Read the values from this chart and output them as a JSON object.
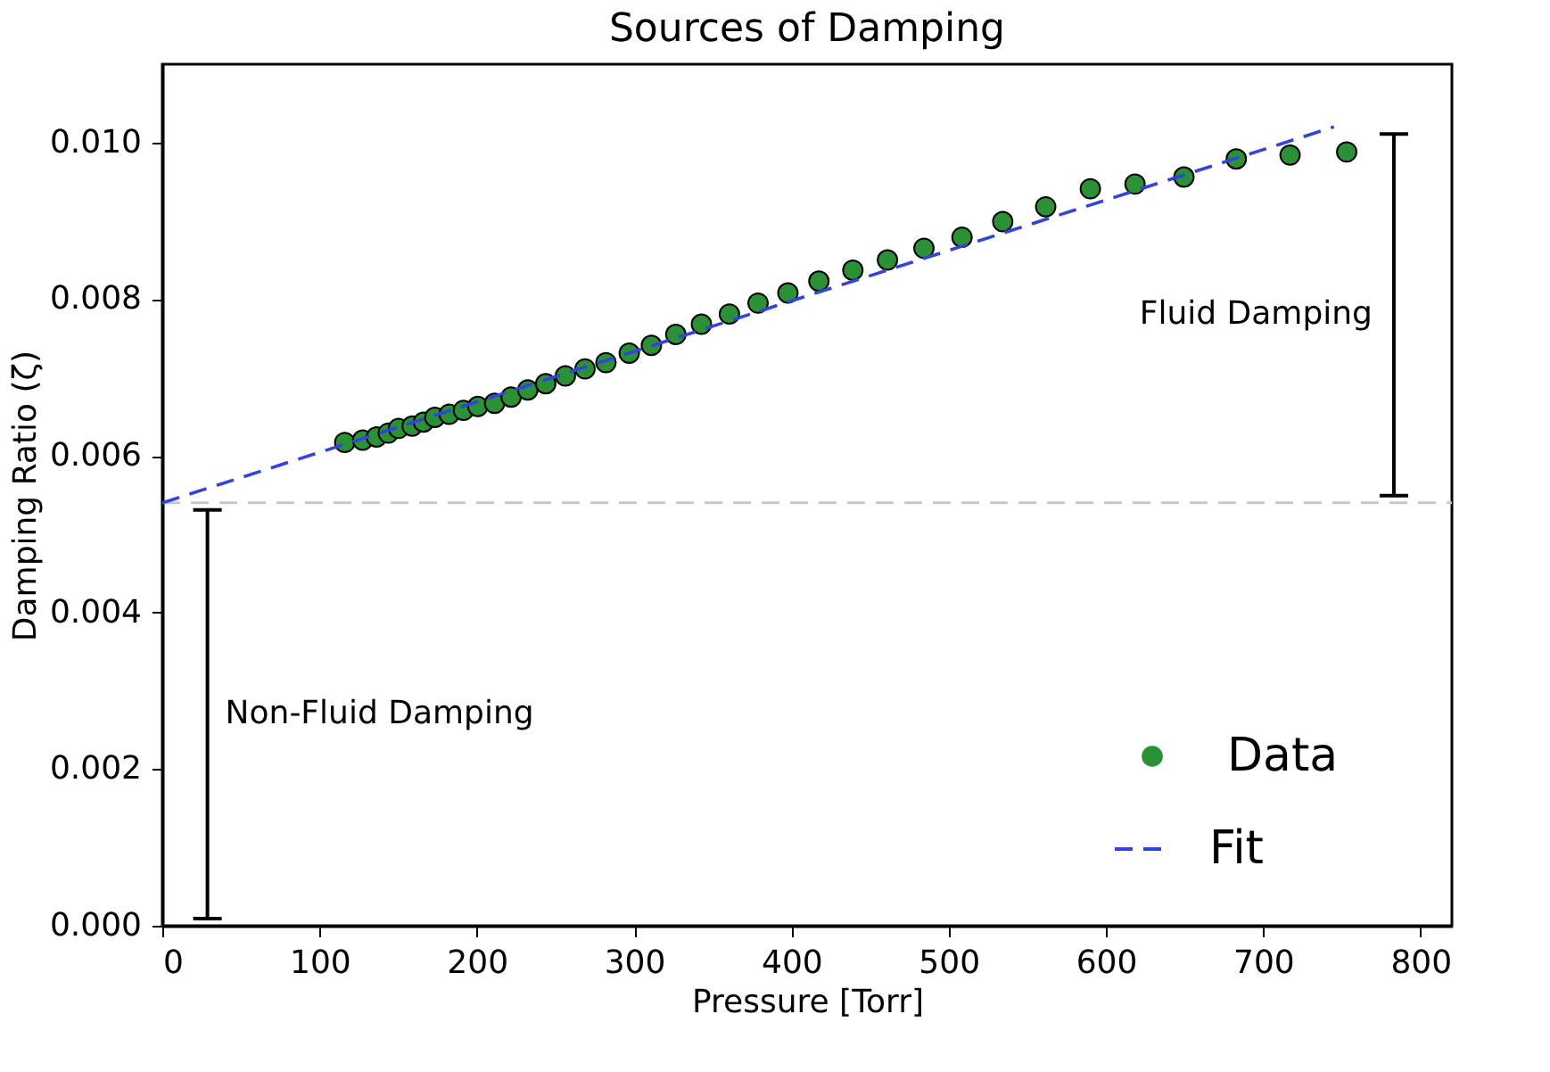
{
  "chart_data": {
    "type": "scatter",
    "title": "Sources of Damping",
    "xlabel": "Pressure [Torr]",
    "ylabel": "Damping Ratio (ζ)",
    "xlim": [
      0,
      820
    ],
    "xticks": [
      0,
      100,
      200,
      300,
      400,
      500,
      600,
      700,
      800
    ],
    "ylim": [
      0,
      0.011
    ],
    "yticks": [
      {
        "value": 0,
        "label": "0.000"
      },
      {
        "value": 0.002,
        "label": "0.002"
      },
      {
        "value": 0.004,
        "label": "0.004"
      },
      {
        "value": 0.006,
        "label": "0.006"
      },
      {
        "value": 0.008,
        "label": "0.008"
      },
      {
        "value": 0.01,
        "label": "0.010"
      }
    ],
    "grid": false,
    "legend": "bottom right",
    "series": [
      {
        "name": "Data",
        "marker": "circle",
        "color": "#2a9134",
        "x": [
          116.0,
          127.4,
          136.2,
          143.7,
          150.2,
          158.9,
          166.1,
          173.3,
          182.4,
          191.5,
          200.6,
          211.3,
          221.8,
          232.4,
          243.8,
          256.3,
          268.8,
          282.1,
          296.9,
          311.0,
          326.5,
          342.8,
          360.6,
          378.8,
          397.8,
          417.5,
          439.1,
          461.1,
          484.3,
          508.5,
          534.4,
          561.7,
          590.1,
          618.5,
          649.6,
          682.9,
          717.1,
          753.1
        ],
        "values": [
          0.00617,
          0.0062,
          0.00624,
          0.00629,
          0.00635,
          0.00638,
          0.00643,
          0.00649,
          0.00653,
          0.00658,
          0.00663,
          0.00667,
          0.00675,
          0.00684,
          0.00692,
          0.00702,
          0.00711,
          0.00719,
          0.00731,
          0.00741,
          0.00755,
          0.00768,
          0.00781,
          0.00795,
          0.00808,
          0.00823,
          0.00837,
          0.0085,
          0.00865,
          0.00879,
          0.00899,
          0.00918,
          0.00941,
          0.00947,
          0.00956,
          0.00979,
          0.00984,
          0.00988
        ]
      },
      {
        "name": "Fit",
        "type": "line",
        "line_style": "dashed",
        "marker": "none",
        "color": "#3344dd",
        "x": [
          0,
          745
        ],
        "values": [
          0.0054,
          0.0102
        ]
      }
    ],
    "ref_lines": [
      {
        "axis": "y",
        "value": 0.0054,
        "color": "#c8c8c8",
        "line_style": "dashed"
      }
    ],
    "annotations": [
      "Non-Fluid Damping",
      "Fluid Damping"
    ]
  }
}
